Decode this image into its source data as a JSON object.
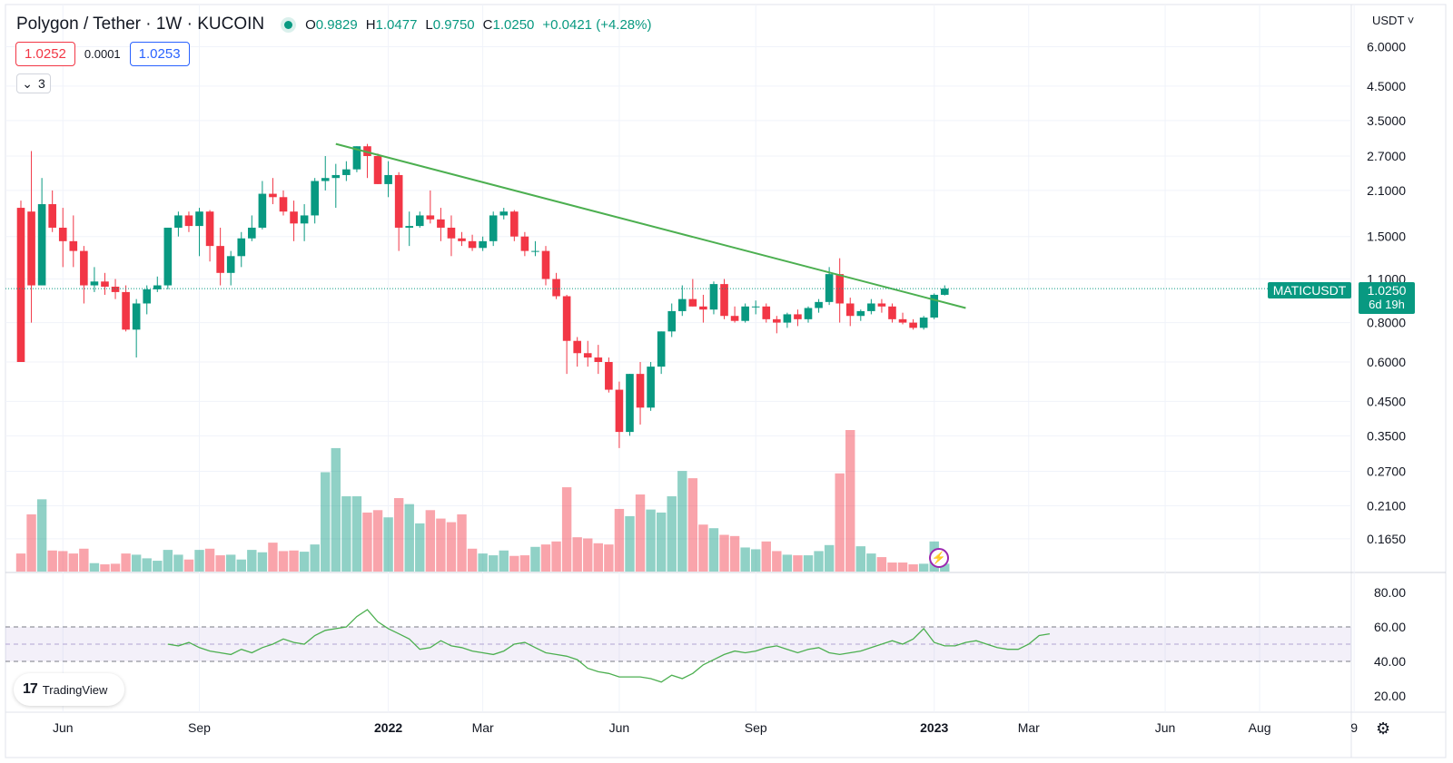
{
  "header": {
    "symbol": "Polygon / Tether · 1W · KUCOIN",
    "ohlc": {
      "o_label": "O",
      "o_value": "0.9829",
      "h_label": "H",
      "h_value": "1.0477",
      "l_label": "L",
      "l_value": "0.9750",
      "c_label": "C",
      "c_value": "1.0250",
      "change": "+0.0421 (+4.28%)"
    },
    "sell_price": "1.0252",
    "spread": "0.0001",
    "buy_price": "1.0253",
    "collapse_count": "3"
  },
  "currency": "USDT",
  "last_price": {
    "symbol_tag": "MATICUSDT",
    "value": "1.0250",
    "countdown": "6d 19h"
  },
  "branding": {
    "logo_mark": "17",
    "logo_text": "TradingView"
  },
  "colors": {
    "up": "#089981",
    "down": "#f23645",
    "trendline": "#4caf50",
    "rsi": "#4caf50",
    "rsi_band": "#7e57c2"
  },
  "chart_data": {
    "type": "candlestick",
    "title": "Polygon / Tether · 1W · KUCOIN",
    "scale": "log",
    "price_ticks": [
      "6.0000",
      "4.5000",
      "3.5000",
      "2.7000",
      "2.1000",
      "1.5000",
      "1.1000",
      "0.8000",
      "0.6000",
      "0.4500",
      "0.3500",
      "0.2700",
      "0.2100",
      "0.1650"
    ],
    "x_tick_labels": [
      {
        "label": "Jun",
        "week": 4
      },
      {
        "label": "Sep",
        "week": 17
      },
      {
        "label": "2022",
        "week": 35
      },
      {
        "label": "Mar",
        "week": 44
      },
      {
        "label": "Jun",
        "week": 57
      },
      {
        "label": "Sep",
        "week": 70
      },
      {
        "label": "2023",
        "week": 87
      },
      {
        "label": "Mar",
        "week": 96
      },
      {
        "label": "Jun",
        "week": 109
      },
      {
        "label": "Aug",
        "week": 118
      },
      {
        "label": "9",
        "week": 127
      }
    ],
    "candles": [
      {
        "o": 1.85,
        "h": 1.95,
        "l": 0.6,
        "c": 0.6,
        "v": 30
      },
      {
        "o": 1.8,
        "h": 2.8,
        "l": 0.8,
        "c": 1.05,
        "v": 95
      },
      {
        "o": 1.05,
        "h": 2.3,
        "l": 1.05,
        "c": 1.9,
        "v": 120
      },
      {
        "o": 1.9,
        "h": 2.1,
        "l": 1.55,
        "c": 1.6,
        "v": 35
      },
      {
        "o": 1.6,
        "h": 1.85,
        "l": 1.2,
        "c": 1.45,
        "v": 34
      },
      {
        "o": 1.45,
        "h": 1.75,
        "l": 1.2,
        "c": 1.35,
        "v": 30
      },
      {
        "o": 1.35,
        "h": 1.4,
        "l": 0.92,
        "c": 1.05,
        "v": 38
      },
      {
        "o": 1.05,
        "h": 1.2,
        "l": 1.0,
        "c": 1.08,
        "v": 14
      },
      {
        "o": 1.08,
        "h": 1.15,
        "l": 0.98,
        "c": 1.04,
        "v": 12
      },
      {
        "o": 1.04,
        "h": 1.1,
        "l": 0.95,
        "c": 1.0,
        "v": 13
      },
      {
        "o": 1.0,
        "h": 1.05,
        "l": 0.75,
        "c": 0.76,
        "v": 30
      },
      {
        "o": 0.76,
        "h": 0.95,
        "l": 0.62,
        "c": 0.92,
        "v": 28
      },
      {
        "o": 0.92,
        "h": 1.05,
        "l": 0.85,
        "c": 1.02,
        "v": 22
      },
      {
        "o": 1.02,
        "h": 1.12,
        "l": 1.0,
        "c": 1.05,
        "v": 18
      },
      {
        "o": 1.05,
        "h": 1.6,
        "l": 1.02,
        "c": 1.6,
        "v": 36
      },
      {
        "o": 1.6,
        "h": 1.8,
        "l": 1.5,
        "c": 1.75,
        "v": 28
      },
      {
        "o": 1.75,
        "h": 1.8,
        "l": 1.55,
        "c": 1.62,
        "v": 20
      },
      {
        "o": 1.62,
        "h": 1.85,
        "l": 1.3,
        "c": 1.8,
        "v": 36
      },
      {
        "o": 1.8,
        "h": 1.82,
        "l": 1.25,
        "c": 1.4,
        "v": 38
      },
      {
        "o": 1.4,
        "h": 1.6,
        "l": 1.05,
        "c": 1.15,
        "v": 27
      },
      {
        "o": 1.15,
        "h": 1.35,
        "l": 1.05,
        "c": 1.3,
        "v": 28
      },
      {
        "o": 1.3,
        "h": 1.55,
        "l": 1.2,
        "c": 1.48,
        "v": 20
      },
      {
        "o": 1.48,
        "h": 1.75,
        "l": 1.45,
        "c": 1.6,
        "v": 36
      },
      {
        "o": 1.6,
        "h": 2.25,
        "l": 1.58,
        "c": 2.05,
        "v": 32
      },
      {
        "o": 2.05,
        "h": 2.3,
        "l": 1.9,
        "c": 2.0,
        "v": 48
      },
      {
        "o": 2.0,
        "h": 2.1,
        "l": 1.75,
        "c": 1.8,
        "v": 34
      },
      {
        "o": 1.8,
        "h": 1.95,
        "l": 1.45,
        "c": 1.65,
        "v": 35
      },
      {
        "o": 1.65,
        "h": 1.9,
        "l": 1.45,
        "c": 1.75,
        "v": 33
      },
      {
        "o": 1.75,
        "h": 2.3,
        "l": 1.65,
        "c": 2.25,
        "v": 45
      },
      {
        "o": 2.25,
        "h": 2.7,
        "l": 2.1,
        "c": 2.3,
        "v": 165
      },
      {
        "o": 2.3,
        "h": 2.55,
        "l": 1.85,
        "c": 2.35,
        "v": 205
      },
      {
        "o": 2.35,
        "h": 2.6,
        "l": 2.25,
        "c": 2.45,
        "v": 125
      },
      {
        "o": 2.45,
        "h": 2.9,
        "l": 2.4,
        "c": 2.9,
        "v": 125
      },
      {
        "o": 2.9,
        "h": 2.95,
        "l": 2.3,
        "c": 2.7,
        "v": 98
      },
      {
        "o": 2.7,
        "h": 2.75,
        "l": 2.2,
        "c": 2.2,
        "v": 102
      },
      {
        "o": 2.2,
        "h": 2.6,
        "l": 2.0,
        "c": 2.35,
        "v": 90
      },
      {
        "o": 2.35,
        "h": 2.4,
        "l": 1.35,
        "c": 1.6,
        "v": 122
      },
      {
        "o": 1.6,
        "h": 1.8,
        "l": 1.4,
        "c": 1.62,
        "v": 112
      },
      {
        "o": 1.62,
        "h": 1.8,
        "l": 1.6,
        "c": 1.75,
        "v": 80
      },
      {
        "o": 1.75,
        "h": 2.1,
        "l": 1.65,
        "c": 1.7,
        "v": 102
      },
      {
        "o": 1.7,
        "h": 1.85,
        "l": 1.45,
        "c": 1.6,
        "v": 88
      },
      {
        "o": 1.6,
        "h": 1.75,
        "l": 1.3,
        "c": 1.48,
        "v": 82
      },
      {
        "o": 1.48,
        "h": 1.55,
        "l": 1.4,
        "c": 1.45,
        "v": 95
      },
      {
        "o": 1.45,
        "h": 1.52,
        "l": 1.35,
        "c": 1.38,
        "v": 38
      },
      {
        "o": 1.38,
        "h": 1.5,
        "l": 1.35,
        "c": 1.45,
        "v": 30
      },
      {
        "o": 1.45,
        "h": 1.8,
        "l": 1.4,
        "c": 1.75,
        "v": 27
      },
      {
        "o": 1.75,
        "h": 1.85,
        "l": 1.7,
        "c": 1.8,
        "v": 35
      },
      {
        "o": 1.8,
        "h": 1.82,
        "l": 1.45,
        "c": 1.5,
        "v": 26
      },
      {
        "o": 1.5,
        "h": 1.55,
        "l": 1.3,
        "c": 1.35,
        "v": 27
      },
      {
        "o": 1.35,
        "h": 1.45,
        "l": 1.3,
        "c": 1.35,
        "v": 41
      },
      {
        "o": 1.35,
        "h": 1.4,
        "l": 1.05,
        "c": 1.1,
        "v": 45
      },
      {
        "o": 1.1,
        "h": 1.15,
        "l": 0.95,
        "c": 0.97,
        "v": 50
      },
      {
        "o": 0.97,
        "h": 0.98,
        "l": 0.55,
        "c": 0.7,
        "v": 140
      },
      {
        "o": 0.7,
        "h": 0.72,
        "l": 0.58,
        "c": 0.64,
        "v": 57
      },
      {
        "o": 0.64,
        "h": 0.7,
        "l": 0.58,
        "c": 0.62,
        "v": 55
      },
      {
        "o": 0.62,
        "h": 0.68,
        "l": 0.55,
        "c": 0.6,
        "v": 47
      },
      {
        "o": 0.6,
        "h": 0.62,
        "l": 0.48,
        "c": 0.49,
        "v": 45
      },
      {
        "o": 0.49,
        "h": 0.52,
        "l": 0.32,
        "c": 0.36,
        "v": 104
      },
      {
        "o": 0.36,
        "h": 0.55,
        "l": 0.35,
        "c": 0.55,
        "v": 92
      },
      {
        "o": 0.55,
        "h": 0.6,
        "l": 0.38,
        "c": 0.43,
        "v": 128
      },
      {
        "o": 0.43,
        "h": 0.6,
        "l": 0.42,
        "c": 0.58,
        "v": 103
      },
      {
        "o": 0.58,
        "h": 0.75,
        "l": 0.55,
        "c": 0.75,
        "v": 98
      },
      {
        "o": 0.75,
        "h": 0.92,
        "l": 0.72,
        "c": 0.87,
        "v": 125
      },
      {
        "o": 0.87,
        "h": 1.05,
        "l": 0.84,
        "c": 0.95,
        "v": 167
      },
      {
        "o": 0.95,
        "h": 1.1,
        "l": 0.9,
        "c": 0.9,
        "v": 155
      },
      {
        "o": 0.9,
        "h": 0.98,
        "l": 0.8,
        "c": 0.88,
        "v": 78
      },
      {
        "o": 0.88,
        "h": 1.08,
        "l": 0.85,
        "c": 1.06,
        "v": 72
      },
      {
        "o": 1.06,
        "h": 1.1,
        "l": 0.82,
        "c": 0.84,
        "v": 61
      },
      {
        "o": 0.84,
        "h": 0.9,
        "l": 0.8,
        "c": 0.81,
        "v": 59
      },
      {
        "o": 0.81,
        "h": 0.92,
        "l": 0.8,
        "c": 0.9,
        "v": 40
      },
      {
        "o": 0.9,
        "h": 0.94,
        "l": 0.85,
        "c": 0.9,
        "v": 37
      },
      {
        "o": 0.9,
        "h": 0.92,
        "l": 0.8,
        "c": 0.82,
        "v": 50
      },
      {
        "o": 0.82,
        "h": 0.84,
        "l": 0.74,
        "c": 0.8,
        "v": 34
      },
      {
        "o": 0.8,
        "h": 0.86,
        "l": 0.77,
        "c": 0.85,
        "v": 28
      },
      {
        "o": 0.85,
        "h": 0.88,
        "l": 0.78,
        "c": 0.82,
        "v": 27
      },
      {
        "o": 0.82,
        "h": 0.9,
        "l": 0.8,
        "c": 0.89,
        "v": 27
      },
      {
        "o": 0.89,
        "h": 0.95,
        "l": 0.86,
        "c": 0.93,
        "v": 34
      },
      {
        "o": 0.93,
        "h": 1.2,
        "l": 0.91,
        "c": 1.14,
        "v": 44
      },
      {
        "o": 1.14,
        "h": 1.28,
        "l": 0.8,
        "c": 0.92,
        "v": 163
      },
      {
        "o": 0.92,
        "h": 0.96,
        "l": 0.78,
        "c": 0.84,
        "v": 235
      },
      {
        "o": 0.84,
        "h": 0.88,
        "l": 0.81,
        "c": 0.87,
        "v": 42
      },
      {
        "o": 0.87,
        "h": 0.95,
        "l": 0.85,
        "c": 0.92,
        "v": 30
      },
      {
        "o": 0.92,
        "h": 0.95,
        "l": 0.86,
        "c": 0.9,
        "v": 24
      },
      {
        "o": 0.9,
        "h": 0.92,
        "l": 0.8,
        "c": 0.82,
        "v": 15
      },
      {
        "o": 0.82,
        "h": 0.86,
        "l": 0.79,
        "c": 0.8,
        "v": 15
      },
      {
        "o": 0.8,
        "h": 0.82,
        "l": 0.76,
        "c": 0.77,
        "v": 12
      },
      {
        "o": 0.77,
        "h": 0.84,
        "l": 0.76,
        "c": 0.83,
        "v": 13
      },
      {
        "o": 0.83,
        "h": 0.99,
        "l": 0.82,
        "c": 0.98,
        "v": 50
      },
      {
        "o": 0.98,
        "h": 1.05,
        "l": 0.975,
        "c": 1.025,
        "v": 13
      }
    ],
    "trendline": {
      "start": {
        "week": 30,
        "price": 2.95
      },
      "end": {
        "week": 90,
        "price": 0.89
      }
    },
    "last_price_line": 1.025,
    "rsi": {
      "ticks": [
        "80.00",
        "60.00",
        "40.00",
        "20.00"
      ],
      "upper": 60,
      "mid": 50,
      "lower": 40,
      "first_week": 14,
      "values": [
        50,
        49,
        51,
        48,
        46,
        45,
        44,
        47,
        45,
        48,
        50,
        53,
        51,
        50,
        55,
        58,
        59,
        60,
        66,
        70,
        63,
        59,
        56,
        53,
        47,
        48,
        52,
        49,
        48,
        46,
        45,
        44,
        46,
        50,
        51,
        48,
        45,
        44,
        43,
        41,
        36,
        34,
        33,
        31,
        31,
        31,
        30,
        28,
        32,
        30,
        33,
        38,
        41,
        44,
        46,
        45,
        46,
        48,
        49,
        47,
        45,
        47,
        48,
        45,
        44,
        45,
        46,
        48,
        50,
        52,
        50,
        53,
        59,
        51,
        49,
        49,
        51,
        52,
        50,
        48,
        47,
        47,
        50,
        55,
        56
      ]
    }
  }
}
